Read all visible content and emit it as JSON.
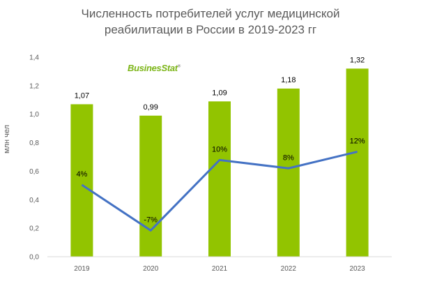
{
  "chart_data": {
    "type": "bar",
    "title_line1": "Численность потребителей услуг медицинской",
    "title_line2": "реабилитации в России в 2019-2023 гг",
    "ylabel": "млн чел",
    "categories": [
      "2019",
      "2020",
      "2021",
      "2022",
      "2023"
    ],
    "series": [
      {
        "type": "bar",
        "values": [
          1.07,
          0.99,
          1.09,
          1.18,
          1.32
        ],
        "labels": [
          "1,07",
          "0,99",
          "1,09",
          "1,18",
          "1,32"
        ],
        "color": "#92c400"
      },
      {
        "type": "line",
        "values": [
          4,
          -7,
          10,
          8,
          12
        ],
        "labels": [
          "4%",
          "-7%",
          "10%",
          "8%",
          "12%"
        ],
        "color": "#4472c4"
      }
    ],
    "ylim": [
      0,
      1.4
    ],
    "yticks": [
      "0,0",
      "0,2",
      "0,4",
      "0,6",
      "0,8",
      "1,0",
      "1,2",
      "1,4"
    ],
    "grid": false,
    "legend": "none"
  },
  "logo": {
    "text": "BusinesStat",
    "mark": "®",
    "color": "#7cb518"
  }
}
